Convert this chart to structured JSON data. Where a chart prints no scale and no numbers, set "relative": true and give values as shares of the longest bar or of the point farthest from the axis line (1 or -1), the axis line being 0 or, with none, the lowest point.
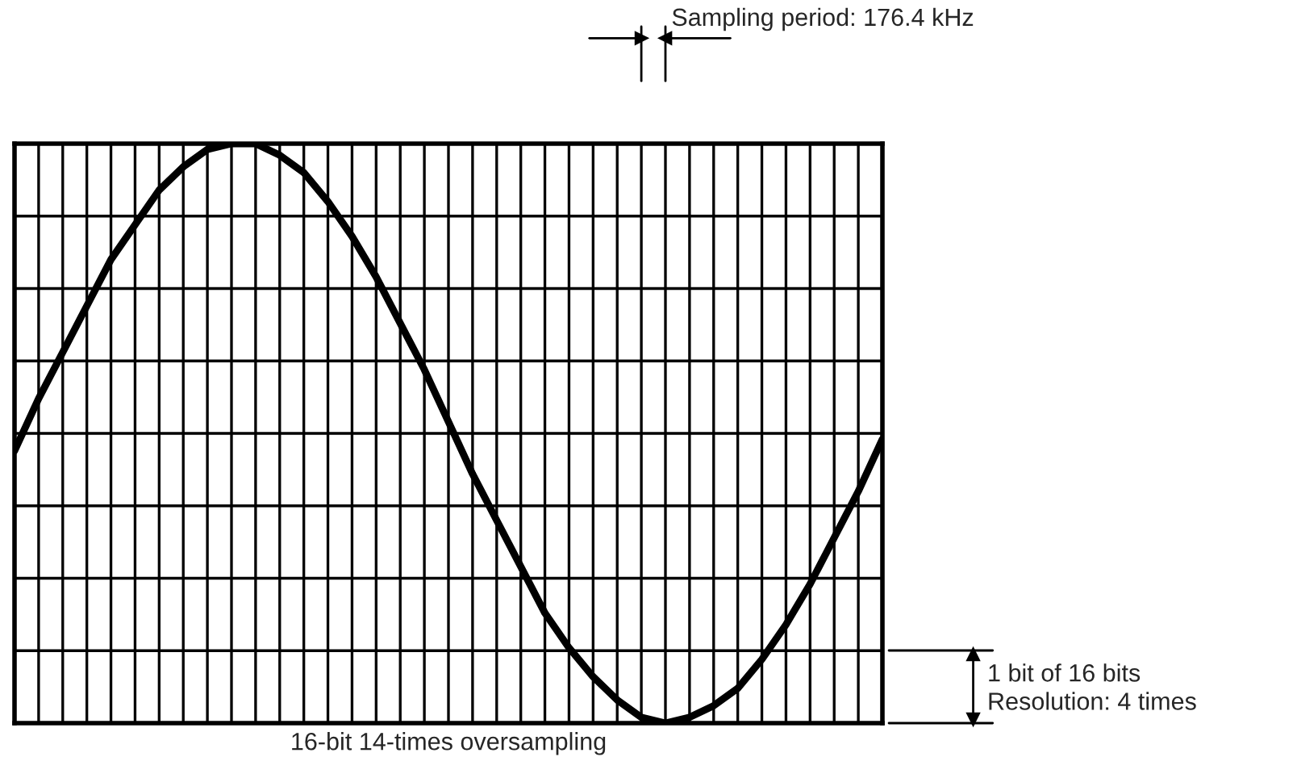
{
  "chart_data": {
    "type": "line",
    "relative": true,
    "xlabel": "16-bit 14-times oversampling",
    "annotations": [
      "Sampling period: 176.4 kHz",
      "1 bit of 16 bits\nResolution: 4 times"
    ],
    "categories": [
      null,
      null,
      null,
      null,
      null,
      null,
      null,
      null,
      null,
      null,
      null,
      null,
      null,
      null,
      null,
      null,
      null,
      null,
      null,
      null,
      null,
      null,
      null,
      null,
      null,
      null,
      null,
      null,
      null,
      null,
      null,
      null,
      null,
      null,
      null,
      null,
      null
    ],
    "series": [
      {
        "color": "#000000",
        "values": [
          0.47,
          0.56,
          0.64,
          0.72,
          0.8,
          0.86,
          0.92,
          0.96,
          0.99,
          1.0,
          1.0,
          0.98,
          0.95,
          0.9,
          0.84,
          0.77,
          0.69,
          0.61,
          0.52,
          0.43,
          0.35,
          0.27,
          0.19,
          0.13,
          0.08,
          0.04,
          0.01,
          0.0,
          0.01,
          0.03,
          0.06,
          0.11,
          0.17,
          0.24,
          0.32,
          0.4,
          0.49
        ]
      }
    ],
    "grid": true,
    "tick_labels": false,
    "marker": "none",
    "line_style": "solid"
  }
}
